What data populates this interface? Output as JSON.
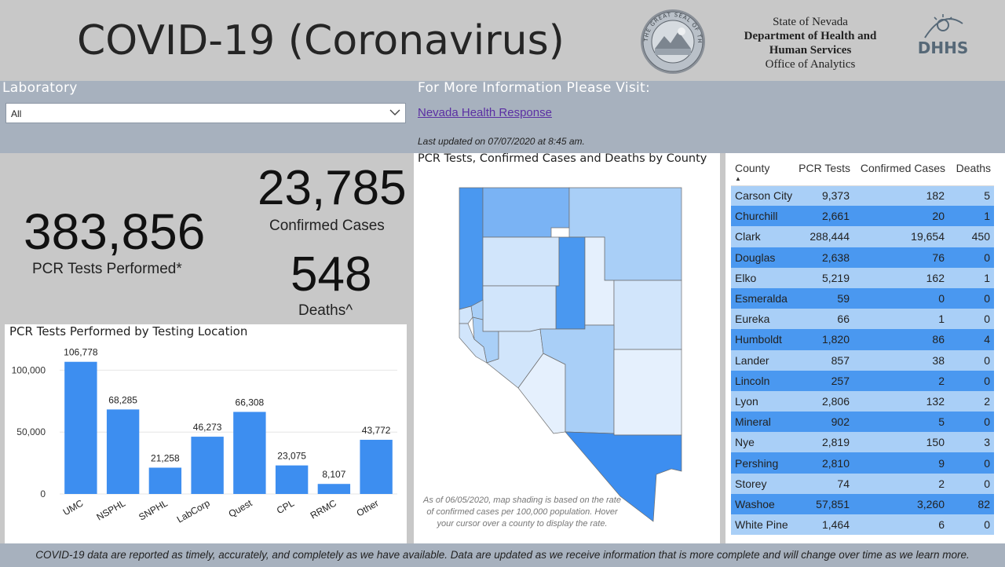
{
  "header": {
    "title": "COVID-19 (Coronavirus)",
    "agency_line1": "State of Nevada",
    "agency_line2": "Department of Health and",
    "agency_line3": "Human Services",
    "agency_line4": "Office of Analytics",
    "seal_text": "THE GREAT SEAL OF THE STATE OF NEVADA",
    "logo_text": "DHHS"
  },
  "filter": {
    "label": "Laboratory",
    "selected": "All"
  },
  "info": {
    "label": "For More Information Please Visit:",
    "link_text": "Nevada Health Response",
    "updated": "Last updated on 07/07/2020 at 8:45 am."
  },
  "kpis": {
    "pcr_value": "383,856",
    "pcr_label": "PCR Tests Performed*",
    "cases_value": "23,785",
    "cases_label": "Confirmed Cases",
    "deaths_value": "548",
    "deaths_label": "Deaths^"
  },
  "colors": {
    "bar": "#3d8ef0",
    "row_light": "#a9cff7",
    "row_dark": "#4a98f0",
    "band": "#a7b1be"
  },
  "chart_data": {
    "type": "bar",
    "title": "PCR Tests Performed by Testing Location",
    "categories": [
      "UMC",
      "NSPHL",
      "SNPHL",
      "LabCorp",
      "Quest",
      "CPL",
      "RRMC",
      "Other"
    ],
    "values": [
      106778,
      68285,
      21258,
      46273,
      66308,
      23075,
      8107,
      43772
    ],
    "value_labels": [
      "106,778",
      "68,285",
      "21,258",
      "46,273",
      "66,308",
      "23,075",
      "8,107",
      "43,772"
    ],
    "y_ticks": [
      0,
      50000,
      100000
    ],
    "y_tick_labels": [
      "0",
      "50,000",
      "100,000"
    ],
    "ylim": [
      0,
      125000
    ],
    "grid": true
  },
  "map": {
    "title": "PCR Tests, Confirmed Cases and Deaths by County",
    "note": "As of 06/05/2020, map shading is based on the rate of confirmed cases per 100,000 population. Hover your cursor over a county to display the rate."
  },
  "table": {
    "headers": [
      "County",
      "PCR Tests",
      "Confirmed Cases",
      "Deaths"
    ],
    "sort_indicator": "▲",
    "rows": [
      [
        "Carson City",
        "9,373",
        "182",
        "5"
      ],
      [
        "Churchill",
        "2,661",
        "20",
        "1"
      ],
      [
        "Clark",
        "288,444",
        "19,654",
        "450"
      ],
      [
        "Douglas",
        "2,638",
        "76",
        "0"
      ],
      [
        "Elko",
        "5,219",
        "162",
        "1"
      ],
      [
        "Esmeralda",
        "59",
        "0",
        "0"
      ],
      [
        "Eureka",
        "66",
        "1",
        "0"
      ],
      [
        "Humboldt",
        "1,820",
        "86",
        "4"
      ],
      [
        "Lander",
        "857",
        "38",
        "0"
      ],
      [
        "Lincoln",
        "257",
        "2",
        "0"
      ],
      [
        "Lyon",
        "2,806",
        "132",
        "2"
      ],
      [
        "Mineral",
        "902",
        "5",
        "0"
      ],
      [
        "Nye",
        "2,819",
        "150",
        "3"
      ],
      [
        "Pershing",
        "2,810",
        "9",
        "0"
      ],
      [
        "Storey",
        "74",
        "2",
        "0"
      ],
      [
        "Washoe",
        "57,851",
        "3,260",
        "82"
      ],
      [
        "White Pine",
        "1,464",
        "6",
        "0"
      ]
    ]
  },
  "footer": {
    "text": "COVID-19 data are reported as timely, accurately, and completely as we have available.  Data are updated as we receive information that is more complete and will change over time as we learn more."
  }
}
